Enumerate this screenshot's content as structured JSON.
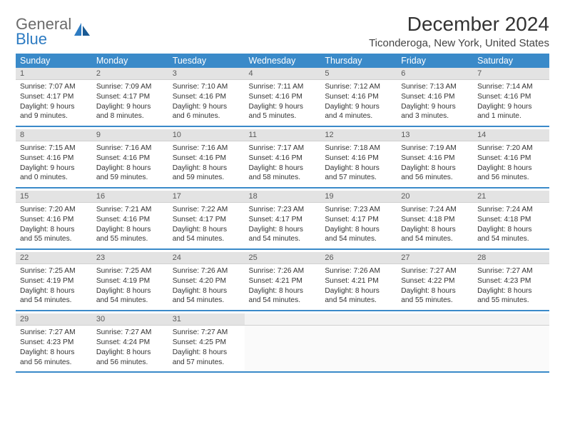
{
  "brand": {
    "name_a": "General",
    "name_b": "Blue"
  },
  "title": "December 2024",
  "location": "Ticonderoga, New York, United States",
  "colors": {
    "header_bg": "#3a8ac9",
    "header_fg": "#ffffff",
    "daynum_bg": "#e3e3e3",
    "rule": "#3a8ac9",
    "logo_gray": "#6b6b6b",
    "logo_blue": "#2d7bc2"
  },
  "days_of_week": [
    "Sunday",
    "Monday",
    "Tuesday",
    "Wednesday",
    "Thursday",
    "Friday",
    "Saturday"
  ],
  "weeks": [
    [
      {
        "n": "1",
        "sr": "7:07 AM",
        "ss": "4:17 PM",
        "dl": "9 hours and 9 minutes."
      },
      {
        "n": "2",
        "sr": "7:09 AM",
        "ss": "4:17 PM",
        "dl": "9 hours and 8 minutes."
      },
      {
        "n": "3",
        "sr": "7:10 AM",
        "ss": "4:16 PM",
        "dl": "9 hours and 6 minutes."
      },
      {
        "n": "4",
        "sr": "7:11 AM",
        "ss": "4:16 PM",
        "dl": "9 hours and 5 minutes."
      },
      {
        "n": "5",
        "sr": "7:12 AM",
        "ss": "4:16 PM",
        "dl": "9 hours and 4 minutes."
      },
      {
        "n": "6",
        "sr": "7:13 AM",
        "ss": "4:16 PM",
        "dl": "9 hours and 3 minutes."
      },
      {
        "n": "7",
        "sr": "7:14 AM",
        "ss": "4:16 PM",
        "dl": "9 hours and 1 minute."
      }
    ],
    [
      {
        "n": "8",
        "sr": "7:15 AM",
        "ss": "4:16 PM",
        "dl": "9 hours and 0 minutes."
      },
      {
        "n": "9",
        "sr": "7:16 AM",
        "ss": "4:16 PM",
        "dl": "8 hours and 59 minutes."
      },
      {
        "n": "10",
        "sr": "7:16 AM",
        "ss": "4:16 PM",
        "dl": "8 hours and 59 minutes."
      },
      {
        "n": "11",
        "sr": "7:17 AM",
        "ss": "4:16 PM",
        "dl": "8 hours and 58 minutes."
      },
      {
        "n": "12",
        "sr": "7:18 AM",
        "ss": "4:16 PM",
        "dl": "8 hours and 57 minutes."
      },
      {
        "n": "13",
        "sr": "7:19 AM",
        "ss": "4:16 PM",
        "dl": "8 hours and 56 minutes."
      },
      {
        "n": "14",
        "sr": "7:20 AM",
        "ss": "4:16 PM",
        "dl": "8 hours and 56 minutes."
      }
    ],
    [
      {
        "n": "15",
        "sr": "7:20 AM",
        "ss": "4:16 PM",
        "dl": "8 hours and 55 minutes."
      },
      {
        "n": "16",
        "sr": "7:21 AM",
        "ss": "4:16 PM",
        "dl": "8 hours and 55 minutes."
      },
      {
        "n": "17",
        "sr": "7:22 AM",
        "ss": "4:17 PM",
        "dl": "8 hours and 54 minutes."
      },
      {
        "n": "18",
        "sr": "7:23 AM",
        "ss": "4:17 PM",
        "dl": "8 hours and 54 minutes."
      },
      {
        "n": "19",
        "sr": "7:23 AM",
        "ss": "4:17 PM",
        "dl": "8 hours and 54 minutes."
      },
      {
        "n": "20",
        "sr": "7:24 AM",
        "ss": "4:18 PM",
        "dl": "8 hours and 54 minutes."
      },
      {
        "n": "21",
        "sr": "7:24 AM",
        "ss": "4:18 PM",
        "dl": "8 hours and 54 minutes."
      }
    ],
    [
      {
        "n": "22",
        "sr": "7:25 AM",
        "ss": "4:19 PM",
        "dl": "8 hours and 54 minutes."
      },
      {
        "n": "23",
        "sr": "7:25 AM",
        "ss": "4:19 PM",
        "dl": "8 hours and 54 minutes."
      },
      {
        "n": "24",
        "sr": "7:26 AM",
        "ss": "4:20 PM",
        "dl": "8 hours and 54 minutes."
      },
      {
        "n": "25",
        "sr": "7:26 AM",
        "ss": "4:21 PM",
        "dl": "8 hours and 54 minutes."
      },
      {
        "n": "26",
        "sr": "7:26 AM",
        "ss": "4:21 PM",
        "dl": "8 hours and 54 minutes."
      },
      {
        "n": "27",
        "sr": "7:27 AM",
        "ss": "4:22 PM",
        "dl": "8 hours and 55 minutes."
      },
      {
        "n": "28",
        "sr": "7:27 AM",
        "ss": "4:23 PM",
        "dl": "8 hours and 55 minutes."
      }
    ],
    [
      {
        "n": "29",
        "sr": "7:27 AM",
        "ss": "4:23 PM",
        "dl": "8 hours and 56 minutes."
      },
      {
        "n": "30",
        "sr": "7:27 AM",
        "ss": "4:24 PM",
        "dl": "8 hours and 56 minutes."
      },
      {
        "n": "31",
        "sr": "7:27 AM",
        "ss": "4:25 PM",
        "dl": "8 hours and 57 minutes."
      },
      null,
      null,
      null,
      null
    ]
  ],
  "labels": {
    "sunrise": "Sunrise:",
    "sunset": "Sunset:",
    "daylight": "Daylight:"
  }
}
